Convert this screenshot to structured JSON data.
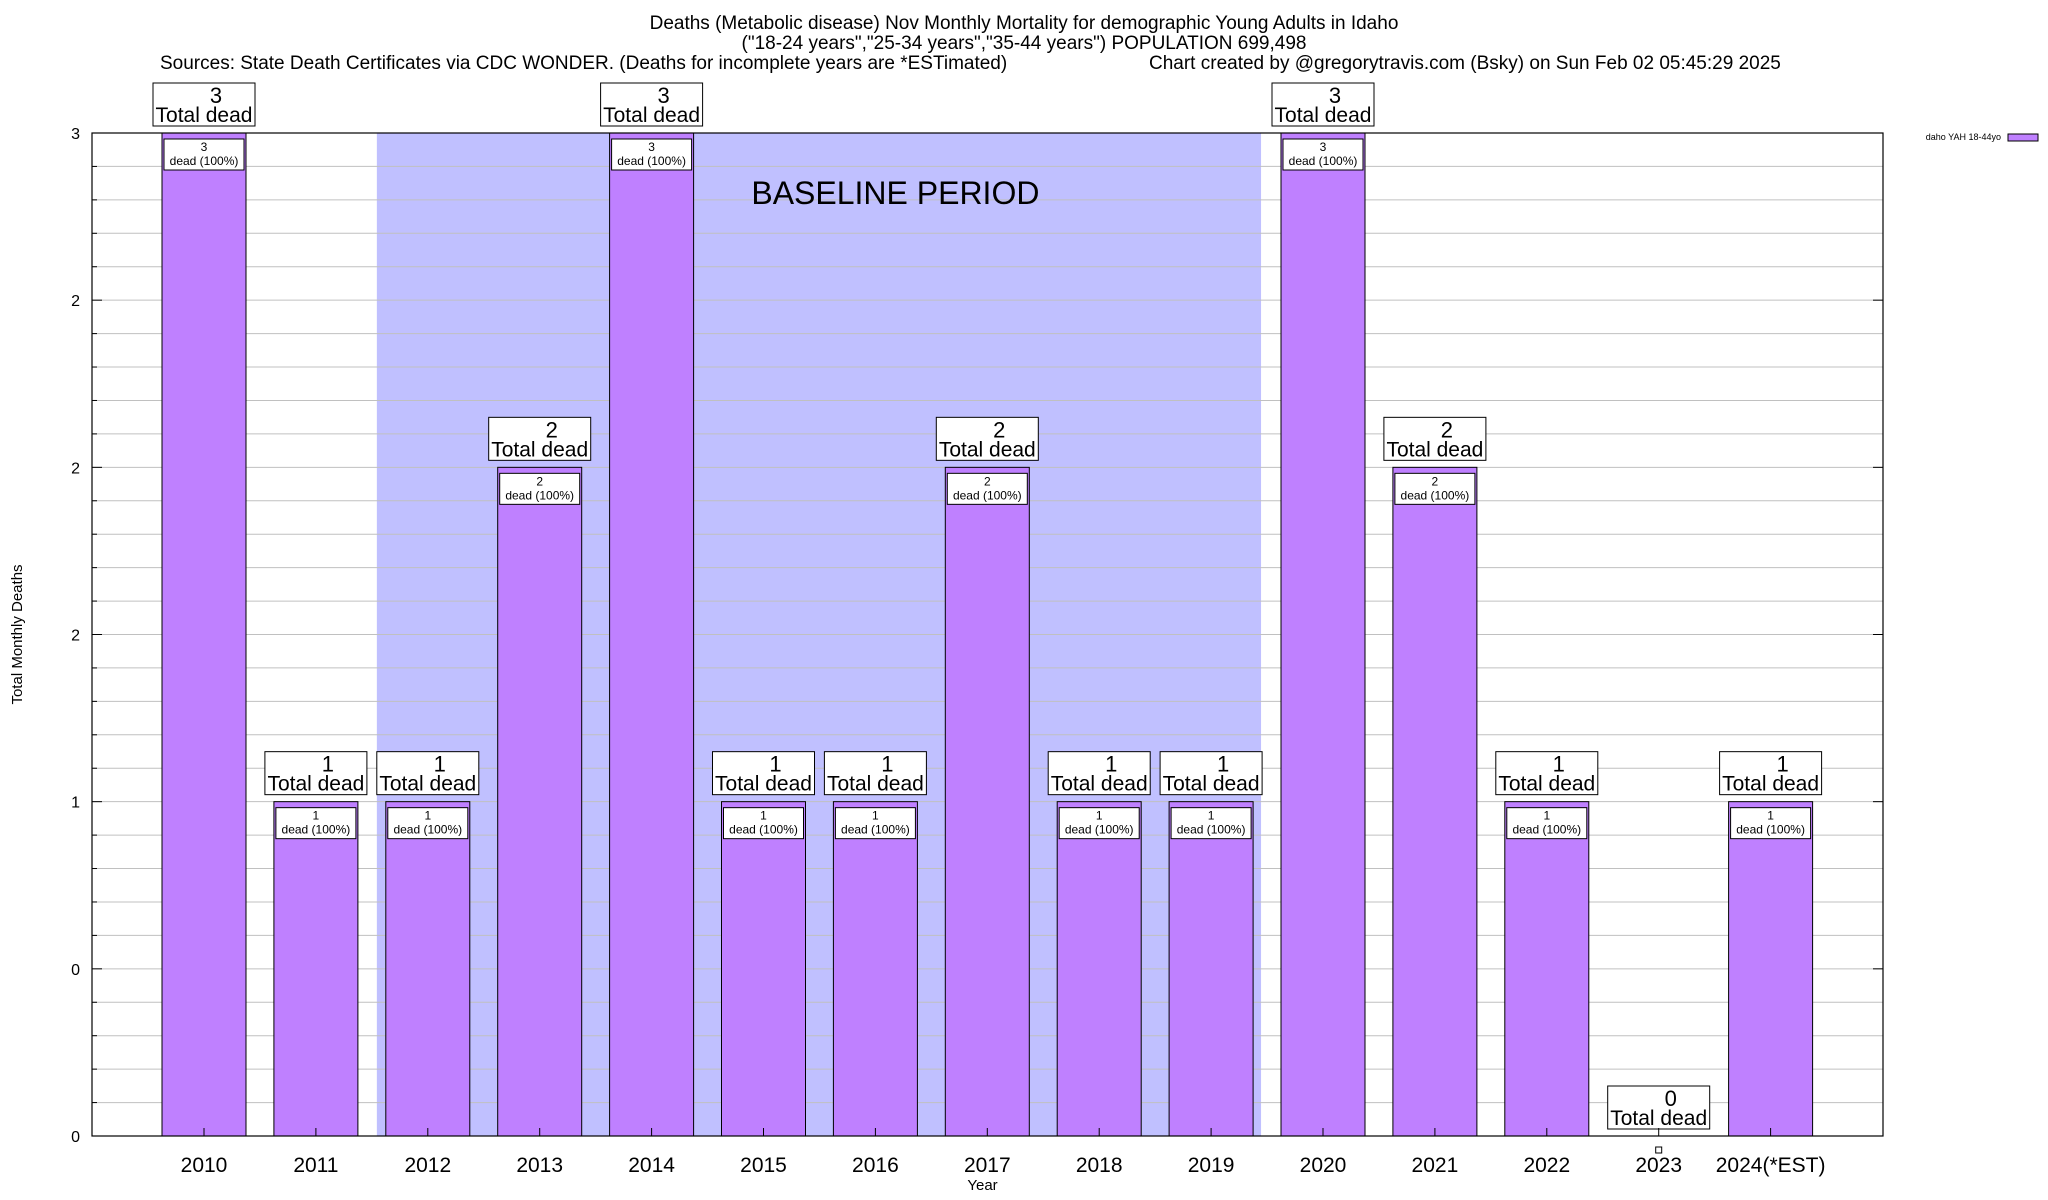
{
  "header": {
    "title_line1": "Deaths (Metabolic disease) Nov Monthly Mortality for demographic Young Adults in Idaho",
    "title_line2": "(\"18-24 years\",\"25-34 years\",\"35-44 years\") POPULATION 699,498",
    "sources": "Sources: State Death Certificates via CDC WONDER. (Deaths for incomplete years are *ESTimated)",
    "credit": "Chart created by @gregorytravis.com (Bsky) on Sun Feb 02 05:45:29 2025"
  },
  "colors": {
    "bar": "#bf80ff",
    "baseline_shade": "#c0c0ff",
    "grid": "#c0c0c0"
  },
  "chart_data": {
    "type": "bar",
    "categories": [
      "2010",
      "2011",
      "2012",
      "2013",
      "2014",
      "2015",
      "2016",
      "2017",
      "2018",
      "2019",
      "2020",
      "2021",
      "2022",
      "2023",
      "2024(*EST)"
    ],
    "series": [
      {
        "name": "daho YAH 18-44yo",
        "values": [
          3,
          1,
          1,
          2,
          3,
          1,
          1,
          2,
          1,
          1,
          3,
          2,
          1,
          0,
          1
        ]
      }
    ],
    "total_box_label": "Total dead",
    "inner_box_label": "dead (100%)",
    "xlabel": "Year",
    "ylabel": "Total Monthly Deaths",
    "ylim": [
      0,
      3
    ],
    "yticks": [
      {
        "value": 0,
        "label": "0"
      },
      {
        "value": 0.5,
        "label": "0"
      },
      {
        "value": 1,
        "label": "1"
      },
      {
        "value": 1.5,
        "label": "2"
      },
      {
        "value": 2,
        "label": "2"
      },
      {
        "value": 2.5,
        "label": "2"
      },
      {
        "value": 3,
        "label": "3"
      }
    ],
    "grid": true,
    "legend_position": "top-right",
    "baseline_period": {
      "label": "BASELINE PERIOD",
      "from": "2012",
      "to": "2019"
    }
  }
}
